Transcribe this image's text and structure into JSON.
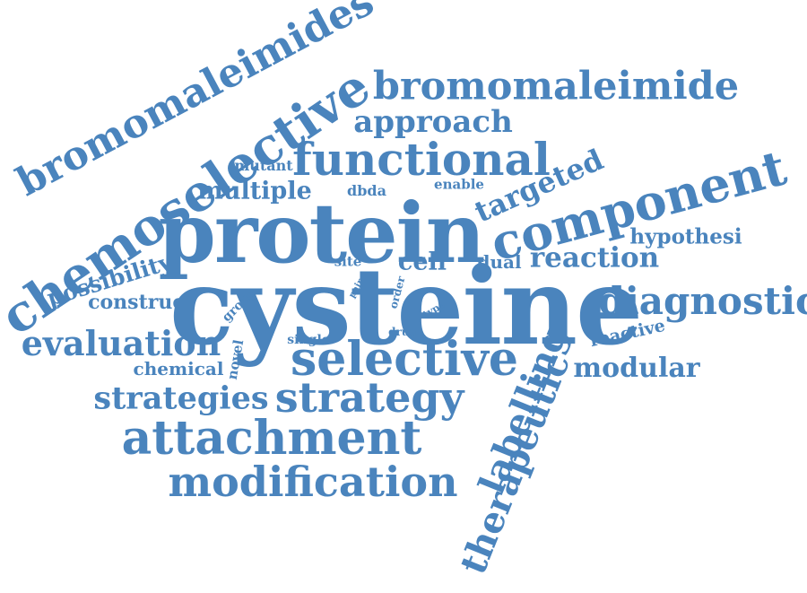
{
  "word_cloud": {
    "color": "#4a84bd",
    "words": {
      "cysteine": "cysteine",
      "protein": "protein",
      "chemoselective": "chemoselective",
      "bromomaleimides": "bromomaleimides",
      "bromomaleimide": "bromomaleimide",
      "approach": "approach",
      "functional": "functional",
      "component": "component",
      "targeted": "targeted",
      "hypothesi": "hypothesi",
      "reaction": "reaction",
      "diagnostic": "diagnostic",
      "reactive": "reactive",
      "modular": "modular",
      "labelling": "labelling",
      "therapeutic": "therapeutic",
      "selective": "selective",
      "strategy": "strategy",
      "strategies": "strategies",
      "attachment": "attachment",
      "modification": "modification",
      "evaluation": "evaluation",
      "chemical": "chemical",
      "novel": "novel",
      "construct": "construct",
      "possibility": "possibility",
      "group": "group",
      "multiple": "multiple",
      "mutant": "mutant",
      "dbda": "dbda",
      "enable": "enable",
      "site": "site",
      "cell": "cell",
      "dual": "dual",
      "pair": "pair",
      "order": "order",
      "type": "type",
      "single": "single",
      "drug": "drug"
    }
  }
}
